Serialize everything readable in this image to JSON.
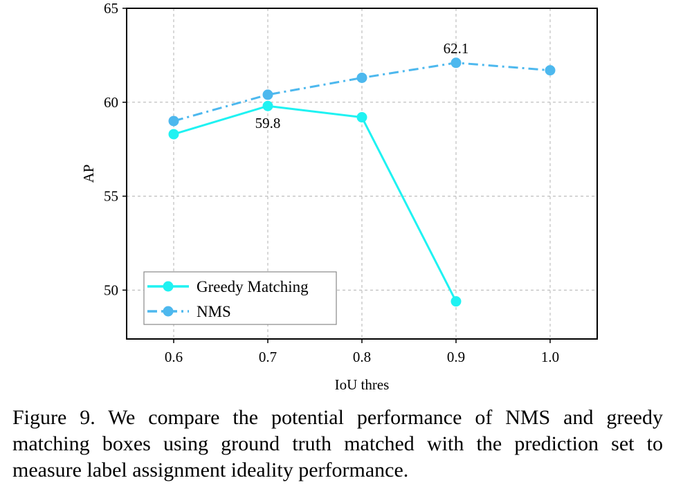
{
  "chart_data": {
    "type": "line",
    "xlabel": "IoU thres",
    "ylabel": "AP",
    "x": [
      0.6,
      0.7,
      0.8,
      0.9,
      1.0
    ],
    "x_tick_labels": [
      "0.6",
      "0.7",
      "0.8",
      "0.9",
      "1.0"
    ],
    "y_ticks": [
      50,
      55,
      60,
      65
    ],
    "y_tick_labels": [
      "50",
      "55",
      "60",
      "65"
    ],
    "xlim": [
      0.55,
      1.05
    ],
    "ylim": [
      47.4,
      65
    ],
    "grid": true,
    "legend_position": "bottom-left",
    "series": [
      {
        "name": "Greedy Matching",
        "x": [
          0.6,
          0.7,
          0.8,
          0.9
        ],
        "values": [
          58.3,
          59.8,
          59.2,
          49.4
        ],
        "color": "#1ff2f2",
        "style": "solid"
      },
      {
        "name": "NMS",
        "x": [
          0.6,
          0.7,
          0.8,
          0.9,
          1.0
        ],
        "values": [
          59.0,
          60.4,
          61.3,
          62.1,
          61.7
        ],
        "color": "#4db8ee",
        "style": "dashdot"
      }
    ],
    "annotations": [
      {
        "text": "59.8",
        "x": 0.7,
        "y": 59.8,
        "series": "Greedy Matching",
        "placement": "below"
      },
      {
        "text": "62.1",
        "x": 0.9,
        "y": 62.1,
        "series": "NMS",
        "placement": "above"
      }
    ]
  },
  "caption": "Figure 9. We compare the potential performance of NMS and greedy matching boxes using ground truth matched with the prediction set to measure label assignment ideality performance."
}
